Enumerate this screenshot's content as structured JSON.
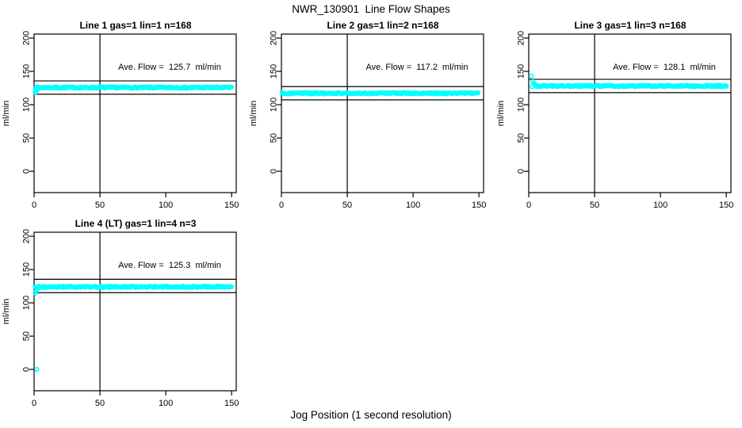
{
  "main_title": "NWR_130901  Line Flow Shapes",
  "x_axis_label": "Jog Position (1 second resolution)",
  "chart_data": {
    "type": "scatter",
    "title": "NWR_130901  Line Flow Shapes",
    "xlabel": "Jog Position (1 second resolution)",
    "point_color": "#00FFFF",
    "line_color": "#000000",
    "axes": {
      "xticks": [
        0,
        50,
        100,
        150
      ],
      "xtick_labels": [
        "0",
        "50",
        "100",
        "150"
      ],
      "yticks": [
        0,
        50,
        100,
        150,
        200
      ],
      "ytick_labels": [
        "0",
        "50",
        "100",
        "150",
        "200"
      ],
      "ylabel": "ml/min",
      "xlim": [
        0,
        153.5
      ],
      "ylim": [
        -32,
        206
      ],
      "grid": false
    },
    "panels": [
      {
        "id": "line-1",
        "title": "Line 1 gas=1 lin=1 n=168",
        "n": 168,
        "ave_flow": 125.7,
        "ave_flow_label": "Ave. Flow =  125.7  ml/min",
        "flat_value": 125.7,
        "band_x_start": 1,
        "band_x_end": 150,
        "ref_line_upper": 135.7,
        "ref_line_lower": 115.7,
        "vline_x": 50,
        "lead_in": [
          [
            1,
            118.5
          ],
          [
            1.6,
            120.6
          ],
          [
            2.2,
            122.4
          ],
          [
            2.8,
            123.9
          ],
          [
            3.5,
            124.9
          ]
        ],
        "outliers": []
      },
      {
        "id": "line-2",
        "title": "Line 2 gas=1 lin=2 n=168",
        "n": 168,
        "ave_flow": 117.2,
        "ave_flow_label": "Ave. Flow =  117.2  ml/min",
        "flat_value": 117.2,
        "band_x_start": 0.5,
        "band_x_end": 150,
        "ref_line_upper": 127.2,
        "ref_line_lower": 107.2,
        "vline_x": 50,
        "lead_in": [],
        "outliers": []
      },
      {
        "id": "line-3",
        "title": "Line 3 gas=1 lin=3 n=168",
        "n": 168,
        "ave_flow": 128.1,
        "ave_flow_label": "Ave. Flow =  128.1  ml/min",
        "flat_value": 128.1,
        "band_x_start": 6,
        "band_x_end": 150,
        "ref_line_upper": 138.1,
        "ref_line_lower": 118.1,
        "vline_x": 50,
        "lead_in": [
          [
            2,
            143
          ],
          [
            2.6,
            127.2
          ],
          [
            3.2,
            134.5
          ],
          [
            3.9,
            132
          ],
          [
            4.6,
            130.3
          ],
          [
            5.3,
            129.2
          ],
          [
            6,
            128.5
          ]
        ],
        "outliers": []
      },
      {
        "id": "line-4",
        "title": "Line 4 (LT) gas=1 lin=4 n=3",
        "n": 3,
        "ave_flow": 125.3,
        "ave_flow_label": "Ave. Flow =  125.3  ml/min",
        "flat_value": 124.0,
        "band_x_start": 1,
        "band_x_end": 150,
        "ref_line_upper": 135.3,
        "ref_line_lower": 115.3,
        "vline_x": 50,
        "lead_in": [
          [
            1,
            114.5
          ],
          [
            1.6,
            117.5
          ],
          [
            2.2,
            120
          ],
          [
            2.9,
            122
          ],
          [
            3.6,
            123.3
          ]
        ],
        "outliers": [
          [
            2,
            0
          ]
        ]
      }
    ]
  }
}
